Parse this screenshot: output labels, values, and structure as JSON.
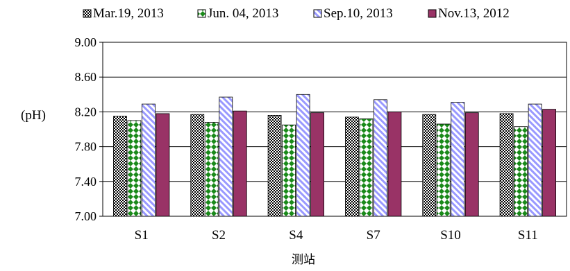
{
  "chart_data": {
    "type": "bar",
    "title": "",
    "xlabel": "测站",
    "ylabel": "(pH)",
    "categories": [
      "S1",
      "S2",
      "S4",
      "S7",
      "S10",
      "S11"
    ],
    "ylim": [
      7.0,
      9.0
    ],
    "yticks": [
      7.0,
      7.4,
      7.8,
      8.2,
      8.6,
      9.0
    ],
    "ytick_labels": [
      "7.00",
      "7.40",
      "7.80",
      "8.20",
      "8.60",
      "9.00"
    ],
    "grid": "horizontal",
    "legend_position": "top",
    "series": [
      {
        "name": "Mar.19, 2013",
        "pattern": "checker",
        "color": "#000000",
        "values": [
          8.15,
          8.17,
          8.16,
          8.14,
          8.17,
          8.18
        ]
      },
      {
        "name": "Jun. 04, 2013",
        "pattern": "diamond",
        "color": "#1a8a1a",
        "values": [
          8.1,
          8.08,
          8.05,
          8.12,
          8.06,
          8.03
        ]
      },
      {
        "name": "Sep.10, 2013",
        "pattern": "diagonal",
        "color": "#9999ff",
        "values": [
          8.29,
          8.37,
          8.4,
          8.34,
          8.31,
          8.29
        ]
      },
      {
        "name": "Nov.13, 2012",
        "pattern": "solid",
        "color": "#993366",
        "values": [
          8.18,
          8.21,
          8.19,
          8.2,
          8.19,
          8.23
        ]
      }
    ]
  }
}
